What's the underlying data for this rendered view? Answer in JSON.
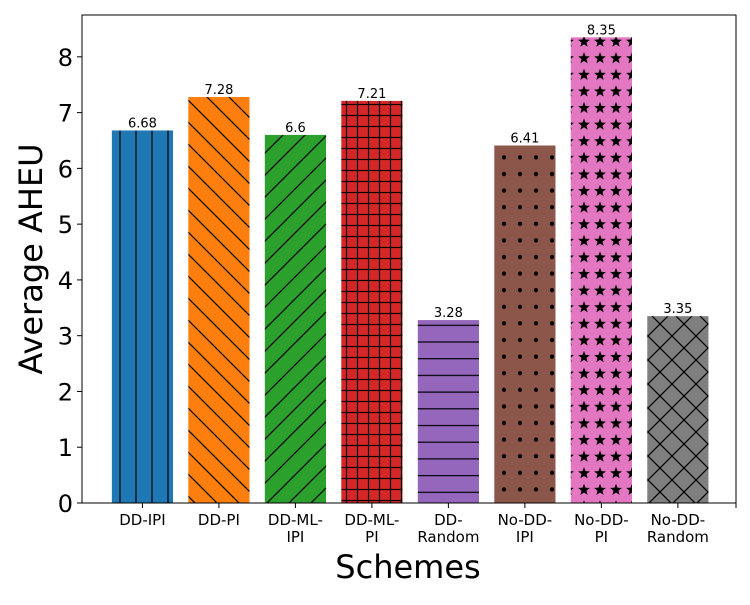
{
  "chart_data": {
    "type": "bar",
    "title": "",
    "xlabel": "Schemes",
    "ylabel": "Average AHEU",
    "ylim": [
      0,
      8.75
    ],
    "yticks": [
      0,
      1,
      2,
      3,
      4,
      5,
      6,
      7,
      8
    ],
    "ytick_labels": [
      "0",
      "1",
      "2",
      "3",
      "4",
      "5",
      "6",
      "7",
      "8"
    ],
    "grid": false,
    "categories": [
      [
        "DD-IPI"
      ],
      [
        "DD-PI"
      ],
      [
        "DD-ML-",
        "IPI"
      ],
      [
        "DD-ML-",
        "PI"
      ],
      [
        "DD-",
        "Random"
      ],
      [
        "No-DD-",
        "IPI"
      ],
      [
        "No-DD-",
        "PI"
      ],
      [
        "No-DD-",
        "Random"
      ]
    ],
    "values": [
      6.68,
      7.28,
      6.6,
      7.21,
      3.28,
      6.41,
      8.35,
      3.35
    ],
    "value_labels": [
      "6.68",
      "7.28",
      "6.6",
      "7.21",
      "3.28",
      "6.41",
      "8.35",
      "3.35"
    ],
    "colors": [
      "#1f77b4",
      "#ff7f0e",
      "#2ca02c",
      "#d62728",
      "#9467bd",
      "#8c564b",
      "#e377c2",
      "#7f7f7f"
    ],
    "hatches": [
      "vertical",
      "back-diagonal",
      "forward-diagonal",
      "grid",
      "horizontal",
      "dots",
      "stars",
      "cross-diagonal"
    ]
  }
}
